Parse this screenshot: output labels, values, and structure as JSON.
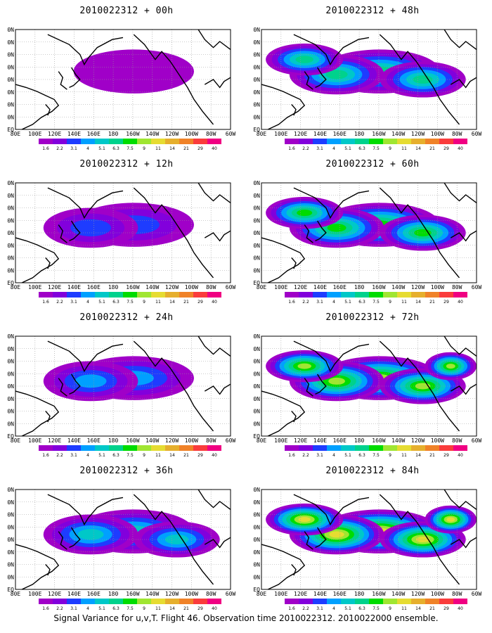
{
  "colorbar": {
    "labels": [
      "1.6",
      "2.2",
      "3.1",
      "4",
      "5.1",
      "6.3",
      "7.5",
      "9",
      "11",
      "14",
      "21",
      "29",
      "40"
    ],
    "colors": [
      "#a000c8",
      "#8200dc",
      "#1e3cff",
      "#00a0ff",
      "#00c8c8",
      "#00d28c",
      "#00dc00",
      "#a0e632",
      "#e6dc32",
      "#e6af2d",
      "#f08228",
      "#fa3c3c",
      "#f00082"
    ]
  },
  "axes": {
    "lon_labels": [
      "80E",
      "100E",
      "120E",
      "140E",
      "160E",
      "180",
      "160W",
      "140W",
      "120W",
      "100W",
      "80W",
      "60W"
    ],
    "lat_labels": [
      "80N",
      "70N",
      "60N",
      "50N",
      "40N",
      "30N",
      "20N",
      "10N",
      "EQ"
    ]
  },
  "panels": [
    {
      "title": "2010022312 + 00h",
      "intensity": 0.15
    },
    {
      "title": "2010022312 + 12h",
      "intensity": 0.3
    },
    {
      "title": "2010022312 + 24h",
      "intensity": 0.45
    },
    {
      "title": "2010022312 + 36h",
      "intensity": 0.6
    },
    {
      "title": "2010022312 + 48h",
      "intensity": 0.7
    },
    {
      "title": "2010022312 + 60h",
      "intensity": 0.8
    },
    {
      "title": "2010022312 + 72h",
      "intensity": 0.9
    },
    {
      "title": "2010022312 + 84h",
      "intensity": 1.0
    }
  ],
  "footer": "Signal Variance for u,v,T. Flight 46. Observation time 2010022312. 2010022000 ensemble."
}
